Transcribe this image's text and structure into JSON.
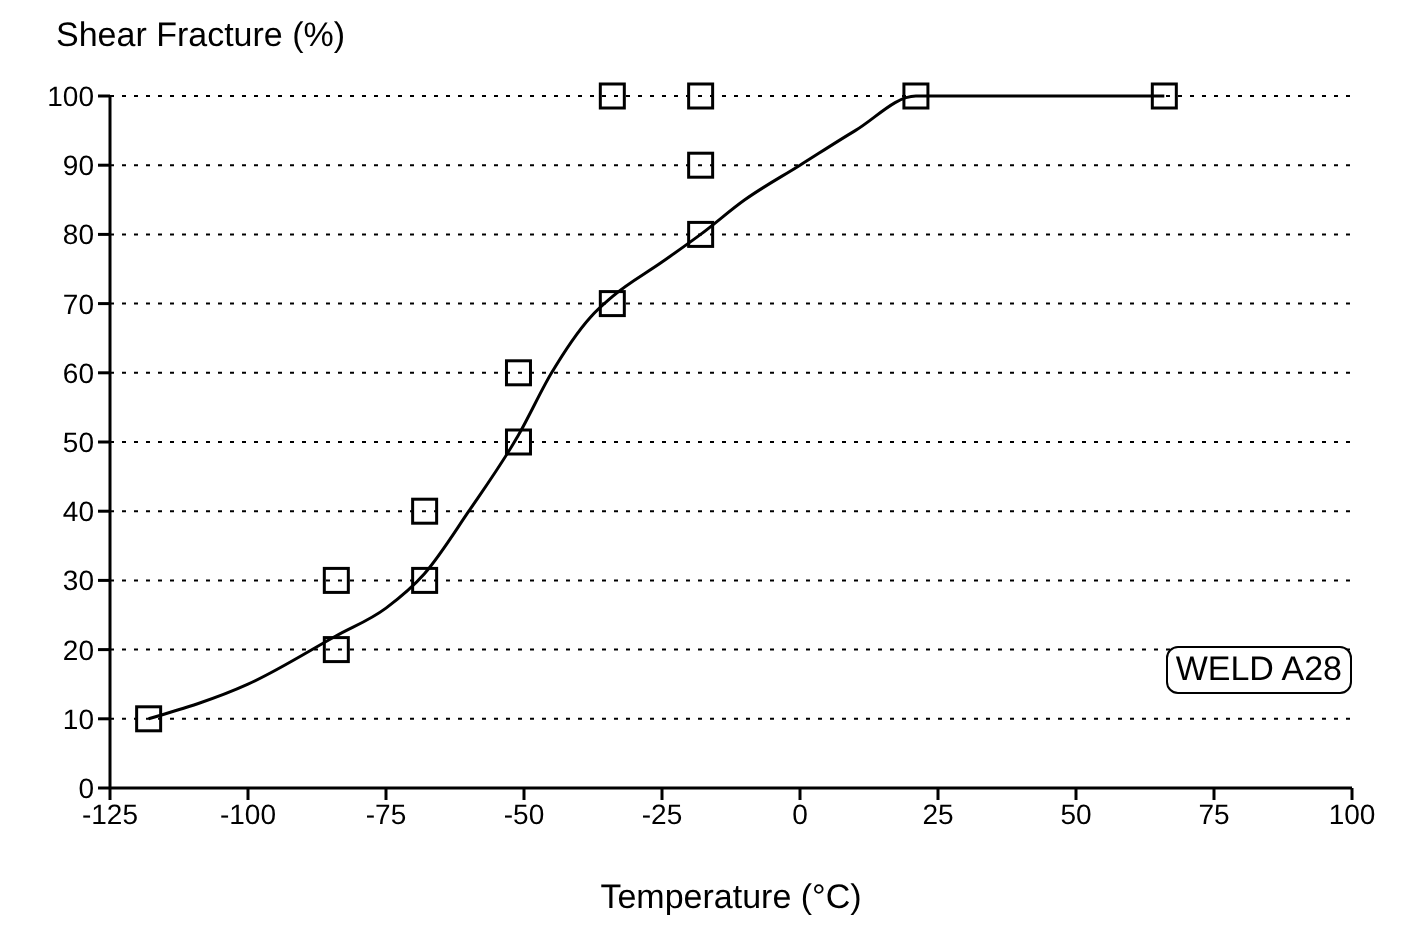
{
  "chart_data": {
    "type": "scatter",
    "ylabel": "Shear Fracture (%)",
    "xlabel": "Temperature (°C)",
    "annotations": [
      "WELD A28"
    ],
    "xlim": [
      -125,
      100
    ],
    "xticks": [
      -125,
      -100,
      -75,
      -50,
      -25,
      0,
      25,
      50,
      75,
      100
    ],
    "ylim": [
      0,
      100
    ],
    "yticks": [
      0,
      10,
      20,
      30,
      40,
      50,
      60,
      70,
      80,
      90,
      100
    ],
    "grid": "y",
    "legend": false,
    "series": [
      {
        "color": "#000000",
        "marker": "square",
        "x": [
          -118,
          -84,
          -84,
          -68,
          -68,
          -51,
          -51,
          -34,
          -34,
          -18,
          -18,
          -18,
          21,
          66
        ],
        "values": [
          10,
          20,
          30,
          30,
          40,
          50,
          60,
          70,
          100,
          80,
          90,
          100,
          100,
          100
        ]
      },
      {
        "type": "line",
        "color": "#000000",
        "marker": "none",
        "line_style": "solid",
        "x": [
          -118,
          -100,
          -84,
          -75,
          -68,
          -60,
          -51,
          -45,
          -38,
          -34,
          -25,
          -18,
          -10,
          0,
          10,
          21,
          30,
          40,
          66
        ],
        "values": [
          10,
          15,
          22,
          26,
          31,
          40,
          51,
          60,
          68,
          71,
          76,
          80,
          85,
          90,
          95,
          100,
          100,
          100,
          100
        ]
      }
    ]
  }
}
